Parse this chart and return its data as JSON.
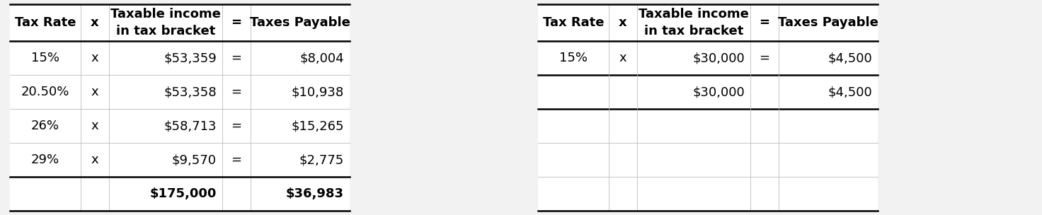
{
  "bg_color": "#f2f2f2",
  "table_bg": "#ffffff",
  "line_color": "#000000",
  "thin_line_color": "#bbbbbb",
  "text_color": "#000000",
  "left_table": {
    "headers": [
      "Tax Rate",
      "x",
      "Taxable income\nin tax bracket",
      "=",
      "Taxes Payable"
    ],
    "header_aligns": [
      "center",
      "center",
      "center",
      "center",
      "center"
    ],
    "col_aligns": [
      "center",
      "center",
      "right",
      "center",
      "right"
    ],
    "rows": [
      [
        "15%",
        "x",
        "$53,359",
        "=",
        "$8,004"
      ],
      [
        "20.50%",
        "x",
        "$53,358",
        "=",
        "$10,938"
      ],
      [
        "26%",
        "x",
        "$58,713",
        "=",
        "$15,265"
      ],
      [
        "29%",
        "x",
        "$9,570",
        "=",
        "$2,775"
      ],
      [
        "",
        "",
        "$175,000",
        "",
        "$36,983"
      ]
    ],
    "total_row": 4
  },
  "right_table": {
    "headers": [
      "Tax Rate",
      "x",
      "Taxable income\nin tax bracket",
      "=",
      "Taxes Payable"
    ],
    "header_aligns": [
      "center",
      "center",
      "center",
      "center",
      "center"
    ],
    "col_aligns": [
      "center",
      "center",
      "right",
      "center",
      "right"
    ],
    "rows": [
      [
        "15%",
        "x",
        "$30,000",
        "=",
        "$4,500"
      ],
      [
        "",
        "",
        "$30,000",
        "",
        "$4,500"
      ],
      [
        "",
        "",
        "",
        "",
        ""
      ],
      [
        "",
        "",
        "",
        "",
        ""
      ],
      [
        "",
        "",
        "",
        "",
        ""
      ]
    ],
    "thick_after_rows": [
      0,
      1
    ]
  }
}
